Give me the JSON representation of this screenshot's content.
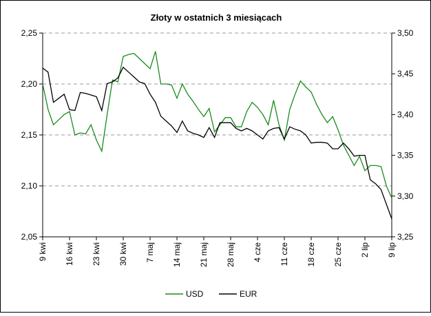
{
  "chart_data": {
    "type": "line",
    "title": "Złoty w ostatnich 3 miesiącach",
    "categories": [
      "9 kwi",
      null,
      null,
      null,
      null,
      "16 kwi",
      null,
      null,
      null,
      null,
      "23 kwi",
      null,
      null,
      null,
      null,
      "30 kwi",
      null,
      null,
      null,
      null,
      "7 maj",
      null,
      null,
      null,
      null,
      "14 maj",
      null,
      null,
      null,
      null,
      "21 maj",
      null,
      null,
      null,
      null,
      "28 maj",
      null,
      null,
      null,
      null,
      "4 cze",
      null,
      null,
      null,
      null,
      "11 cze",
      null,
      null,
      null,
      null,
      "18 cze",
      null,
      null,
      null,
      null,
      "25 cze",
      null,
      null,
      null,
      null,
      "2 lip",
      null,
      null,
      null,
      null,
      "9 lip"
    ],
    "series": [
      {
        "name": "USD",
        "color": "#1a8a1a",
        "axis": "y",
        "values": [
          2.2,
          2.175,
          2.16,
          2.165,
          2.17,
          2.173,
          2.15,
          2.152,
          2.151,
          2.16,
          2.145,
          2.134,
          2.17,
          2.204,
          2.202,
          2.227,
          2.229,
          2.23,
          2.225,
          2.22,
          2.215,
          2.232,
          2.2,
          2.2,
          2.199,
          2.186,
          2.2,
          2.19,
          2.183,
          2.175,
          2.168,
          2.176,
          2.153,
          2.16,
          2.167,
          2.167,
          2.158,
          2.158,
          2.173,
          2.182,
          2.177,
          2.17,
          2.16,
          2.184,
          2.16,
          2.145,
          2.175,
          2.19,
          2.203,
          2.197,
          2.192,
          2.18,
          2.17,
          2.162,
          2.168,
          2.155,
          2.14,
          2.13,
          2.12,
          2.129,
          2.115,
          2.12,
          2.12,
          2.119,
          2.1,
          2.088
        ]
      },
      {
        "name": "EUR",
        "color": "#000000",
        "axis": "y2",
        "values": [
          3.457,
          3.452,
          3.415,
          3.42,
          3.425,
          3.406,
          3.405,
          3.427,
          3.426,
          3.424,
          3.422,
          3.405,
          3.438,
          3.44,
          3.445,
          3.458,
          3.452,
          3.446,
          3.44,
          3.438,
          3.425,
          3.415,
          3.398,
          3.392,
          3.386,
          3.378,
          3.392,
          3.38,
          3.377,
          3.375,
          3.372,
          3.384,
          3.372,
          3.39,
          3.39,
          3.39,
          3.383,
          3.38,
          3.383,
          3.38,
          3.375,
          3.37,
          3.38,
          3.383,
          3.384,
          3.37,
          3.385,
          3.382,
          3.38,
          3.375,
          3.365,
          3.366,
          3.366,
          3.365,
          3.358,
          3.358,
          3.365,
          3.358,
          3.349,
          3.35,
          3.35,
          3.32,
          3.315,
          3.308,
          3.29,
          3.272
        ]
      }
    ],
    "ylim": [
      2.05,
      2.25
    ],
    "yticks": [
      {
        "value": 2.05,
        "label": "2,05"
      },
      {
        "value": 2.1,
        "label": "2,10"
      },
      {
        "value": 2.15,
        "label": "2,15"
      },
      {
        "value": 2.2,
        "label": "2,20"
      },
      {
        "value": 2.25,
        "label": "2,25"
      }
    ],
    "y2lim": [
      3.25,
      3.5
    ],
    "y2ticks": [
      {
        "value": 3.25,
        "label": "3,25"
      },
      {
        "value": 3.3,
        "label": "3,30"
      },
      {
        "value": 3.35,
        "label": "3,35"
      },
      {
        "value": 3.4,
        "label": "3,40"
      },
      {
        "value": 3.45,
        "label": "3,45"
      },
      {
        "value": 3.5,
        "label": "3,50"
      }
    ],
    "grid": true,
    "legend": "bottom"
  }
}
